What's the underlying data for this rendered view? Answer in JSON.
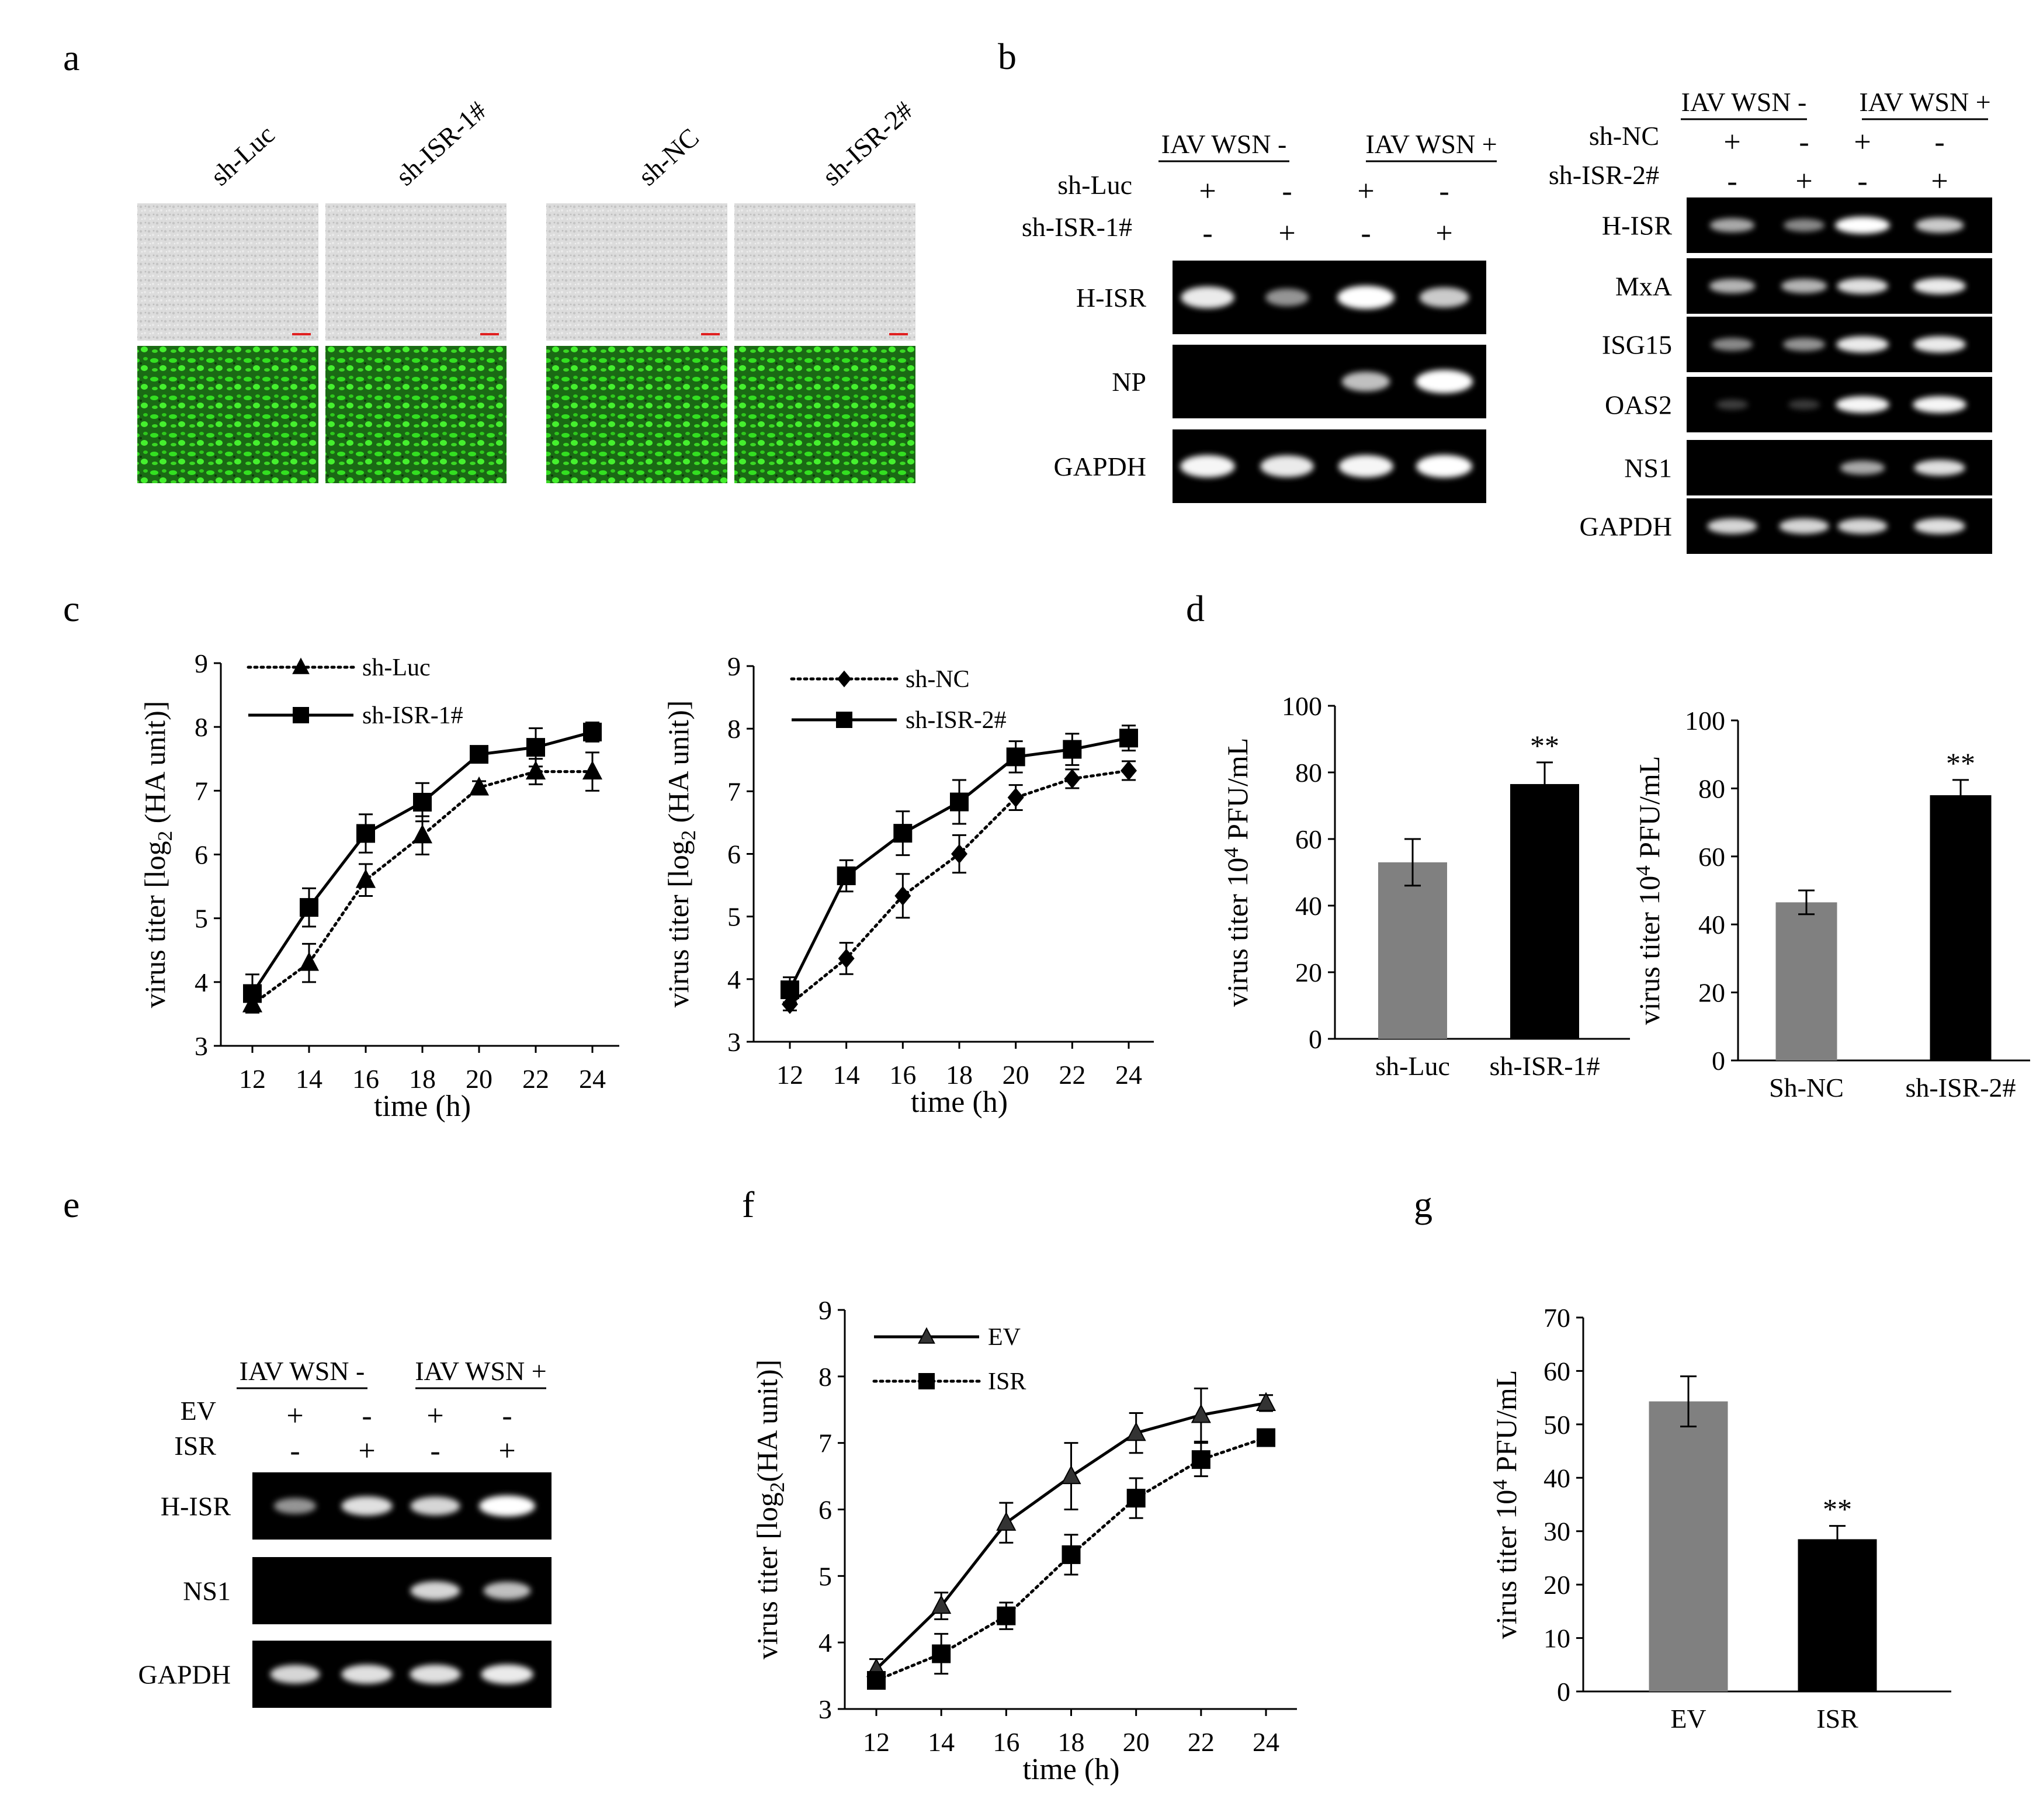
{
  "panels": {
    "a": "a",
    "b": "b",
    "c": "c",
    "d": "d",
    "e": "e",
    "f": "f",
    "g": "g"
  },
  "panel_a": {
    "labels": [
      "sh-Luc",
      "sh-ISR-1#",
      "sh-NC",
      "sh-ISR-2#"
    ]
  },
  "panel_b_left": {
    "groups": [
      "IAV WSN -",
      "IAV WSN +"
    ],
    "conditions": [
      {
        "name": "sh-Luc",
        "signs": [
          "+",
          "-",
          "+",
          "-"
        ]
      },
      {
        "name": "sh-ISR-1#",
        "signs": [
          "-",
          "+",
          "-",
          "+"
        ]
      }
    ],
    "rows": [
      {
        "name": "H-ISR",
        "bands": [
          0.85,
          0.45,
          1.0,
          0.7
        ]
      },
      {
        "name": "NP",
        "bands": [
          0,
          0,
          0.65,
          1.0
        ]
      },
      {
        "name": "GAPDH",
        "bands": [
          0.9,
          0.85,
          0.9,
          0.95
        ]
      }
    ]
  },
  "panel_b_right": {
    "groups": [
      "IAV WSN -",
      "IAV WSN +"
    ],
    "conditions": [
      {
        "name": "sh-NC",
        "signs": [
          "+",
          "-",
          "+",
          "-"
        ]
      },
      {
        "name": "sh-ISR-2#",
        "signs": [
          "-",
          "+",
          "-",
          "+"
        ]
      }
    ],
    "rows": [
      {
        "name": "H-ISR",
        "bands": [
          0.55,
          0.4,
          0.95,
          0.7
        ]
      },
      {
        "name": "MxA",
        "bands": [
          0.6,
          0.6,
          0.8,
          0.85
        ]
      },
      {
        "name": "ISG15",
        "bands": [
          0.4,
          0.45,
          0.85,
          0.85
        ]
      },
      {
        "name": "OAS2",
        "bands": [
          0.05,
          0.03,
          0.9,
          0.9
        ]
      },
      {
        "name": "NS1",
        "bands": [
          0,
          0,
          0.55,
          0.8
        ]
      },
      {
        "name": "GAPDH",
        "bands": [
          0.75,
          0.75,
          0.75,
          0.8
        ]
      }
    ]
  },
  "panel_e": {
    "groups": [
      "IAV WSN -",
      "IAV WSN +"
    ],
    "conditions": [
      {
        "name": "EV",
        "signs": [
          "+",
          "-",
          "+",
          "-"
        ]
      },
      {
        "name": "ISR",
        "signs": [
          "-",
          "+",
          "-",
          "+"
        ]
      }
    ],
    "rows": [
      {
        "name": "H-ISR",
        "bands": [
          0.45,
          0.8,
          0.75,
          1.0
        ]
      },
      {
        "name": "NS1",
        "bands": [
          0,
          0,
          0.75,
          0.65
        ]
      },
      {
        "name": "GAPDH",
        "bands": [
          0.75,
          0.8,
          0.8,
          0.85
        ]
      }
    ]
  },
  "chart_data": [
    {
      "id": "c1",
      "type": "line",
      "xlabel": "time (h)",
      "ylabel": "virus titer [log2 (HA unit)]",
      "ylim": [
        3,
        9
      ],
      "yticks": [
        3,
        4,
        5,
        6,
        7,
        8,
        9
      ],
      "x": [
        12,
        14,
        16,
        18,
        20,
        22,
        24
      ],
      "series": [
        {
          "name": "sh-Luc",
          "style": "dotted",
          "marker": "triangle",
          "values": [
            3.65,
            4.3,
            5.6,
            6.3,
            7.05,
            7.3,
            7.3
          ],
          "errors": [
            0.1,
            0.3,
            0.25,
            0.3,
            0.1,
            0.2,
            0.3
          ]
        },
        {
          "name": "sh-ISR-1#",
          "style": "solid",
          "marker": "square",
          "values": [
            3.82,
            5.17,
            6.33,
            6.82,
            7.57,
            7.68,
            7.92
          ],
          "errors": [
            0.3,
            0.3,
            0.3,
            0.3,
            0.1,
            0.3,
            0.15
          ]
        }
      ]
    },
    {
      "id": "c2",
      "type": "line",
      "xlabel": "time (h)",
      "ylabel": "virus titer [log2 (HA unit)]",
      "ylim": [
        3,
        9
      ],
      "yticks": [
        3,
        4,
        5,
        6,
        7,
        8,
        9
      ],
      "x": [
        12,
        14,
        16,
        18,
        20,
        22,
        24
      ],
      "series": [
        {
          "name": "sh-NC",
          "style": "dotted",
          "marker": "diamond",
          "values": [
            3.6,
            4.33,
            5.33,
            6.0,
            6.9,
            7.2,
            7.33
          ],
          "errors": [
            0.1,
            0.25,
            0.35,
            0.3,
            0.2,
            0.15,
            0.15
          ]
        },
        {
          "name": "sh-ISR-2#",
          "style": "solid",
          "marker": "square",
          "values": [
            3.83,
            5.65,
            6.33,
            6.83,
            7.55,
            7.67,
            7.85
          ],
          "errors": [
            0.2,
            0.25,
            0.35,
            0.35,
            0.25,
            0.25,
            0.2
          ]
        }
      ]
    },
    {
      "id": "d1",
      "type": "bar",
      "ylabel": "virus titer 10^4 PFU/mL",
      "ylim": [
        0,
        100
      ],
      "yticks": [
        0,
        20,
        40,
        60,
        80,
        100
      ],
      "categories": [
        "sh-Luc",
        "sh-ISR-1#"
      ],
      "values": [
        53,
        76.5
      ],
      "errors": [
        7,
        6.5
      ],
      "colors": [
        "#808080",
        "#000000"
      ],
      "annotations": [
        "",
        "**"
      ]
    },
    {
      "id": "d2",
      "type": "bar",
      "ylabel": "virus titer 10^4 PFU/mL",
      "ylim": [
        0,
        100
      ],
      "yticks": [
        0,
        20,
        40,
        60,
        80,
        100
      ],
      "categories": [
        "Sh-NC",
        "sh-ISR-2#"
      ],
      "values": [
        46.5,
        78
      ],
      "errors": [
        3.5,
        4.5
      ],
      "colors": [
        "#808080",
        "#000000"
      ],
      "annotations": [
        "",
        "**"
      ]
    },
    {
      "id": "f1",
      "type": "line",
      "xlabel": "time (h)",
      "ylabel": "virus titer [log2(HA unit)]",
      "ylim": [
        3,
        9
      ],
      "yticks": [
        3,
        4,
        5,
        6,
        7,
        8,
        9
      ],
      "x": [
        12,
        14,
        16,
        18,
        20,
        22,
        24
      ],
      "series": [
        {
          "name": "EV",
          "style": "solid",
          "marker": "triangle",
          "values": [
            3.6,
            4.55,
            5.8,
            6.5,
            7.15,
            7.42,
            7.6
          ],
          "errors": [
            0.15,
            0.2,
            0.3,
            0.5,
            0.3,
            0.4,
            0.12
          ]
        },
        {
          "name": "ISR",
          "style": "dotted",
          "marker": "square",
          "values": [
            3.43,
            3.83,
            4.4,
            5.32,
            6.17,
            6.75,
            7.08
          ],
          "errors": [
            0.1,
            0.3,
            0.2,
            0.3,
            0.3,
            0.25,
            0.1
          ]
        }
      ]
    },
    {
      "id": "g1",
      "type": "bar",
      "ylabel": "virus titer 10^4 PFU/mL",
      "ylim": [
        0,
        70
      ],
      "yticks": [
        0,
        10,
        20,
        30,
        40,
        50,
        60,
        70
      ],
      "categories": [
        "EV",
        "ISR"
      ],
      "values": [
        54.3,
        28.5
      ],
      "errors": [
        4.7,
        2.5
      ],
      "colors": [
        "#808080",
        "#000000"
      ],
      "annotations": [
        "",
        "**"
      ]
    }
  ]
}
